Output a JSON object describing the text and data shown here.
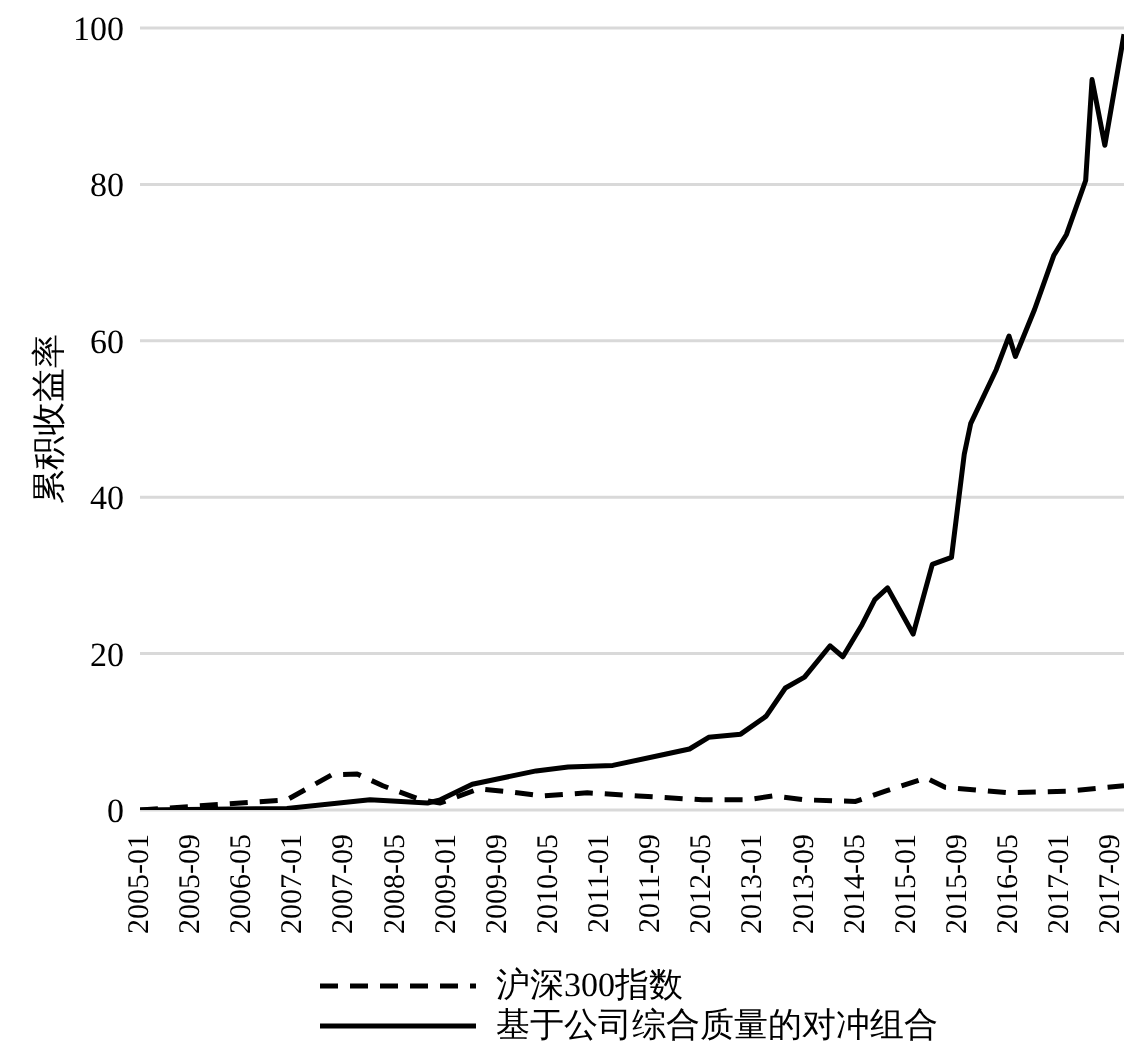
{
  "chart_data": {
    "type": "line",
    "ylabel": "累积收益率",
    "xlim": [
      "2005-01",
      "2017-11"
    ],
    "xticks": [
      "2005-01",
      "2005-09",
      "2006-05",
      "2007-01",
      "2007-09",
      "2008-05",
      "2009-01",
      "2009-09",
      "2010-05",
      "2011-01",
      "2011-09",
      "2012-05",
      "2013-01",
      "2013-09",
      "2014-05",
      "2015-01",
      "2015-09",
      "2016-05",
      "2017-01",
      "2017-09"
    ],
    "ylim": [
      0,
      100
    ],
    "yticks": [
      0,
      20,
      40,
      60,
      80,
      100
    ],
    "grid": "y",
    "legend": "bottom",
    "marker": "none",
    "series": [
      {
        "name": "沪深300指数",
        "color": "#000000",
        "line_style": "dashed",
        "x": [
          "2005-01",
          "2006-12",
          "2007-07",
          "2007-11",
          "2008-03",
          "2008-09",
          "2008-12",
          "2009-06",
          "2009-10",
          "2010-04",
          "2010-11",
          "2011-07",
          "2012-05",
          "2012-12",
          "2013-04",
          "2013-09",
          "2014-05",
          "2014-10",
          "2015-04",
          "2015-07",
          "2016-05",
          "2017-02",
          "2017-11"
        ],
        "values": [
          0,
          1.3,
          4.5,
          4.6,
          3.1,
          1.3,
          0.9,
          2.7,
          2.4,
          1.8,
          2.2,
          1.8,
          1.3,
          1.3,
          1.8,
          1.3,
          1.1,
          2.5,
          4.1,
          2.9,
          2.2,
          2.4,
          3.1
        ]
      },
      {
        "name": "基于公司综合质量的对冲组合",
        "color": "#000000",
        "line_style": "solid",
        "x": [
          "2005-01",
          "2006-12",
          "2008-01",
          "2008-10",
          "2008-12",
          "2009-05",
          "2010-03",
          "2010-08",
          "2011-03",
          "2011-11",
          "2012-03",
          "2012-06",
          "2012-11",
          "2013-03",
          "2013-06",
          "2013-09",
          "2014-01",
          "2014-03",
          "2014-06",
          "2014-08",
          "2014-10",
          "2015-02",
          "2015-05",
          "2015-08",
          "2015-10",
          "2015-11",
          "2016-03",
          "2016-05",
          "2016-06",
          "2016-09",
          "2016-12",
          "2017-02",
          "2017-05",
          "2017-06",
          "2017-08",
          "2017-11"
        ],
        "values": [
          0,
          0.2,
          1.3,
          0.9,
          1.3,
          3.3,
          5.0,
          5.5,
          5.7,
          7.1,
          7.8,
          9.3,
          9.7,
          12,
          15.6,
          17,
          21,
          19.6,
          23.7,
          26.9,
          28.4,
          22.5,
          31.4,
          32.3,
          45.5,
          49.4,
          56.3,
          60.6,
          58,
          64,
          70.9,
          73.6,
          80.5,
          93.4,
          85,
          99.2
        ]
      }
    ]
  }
}
